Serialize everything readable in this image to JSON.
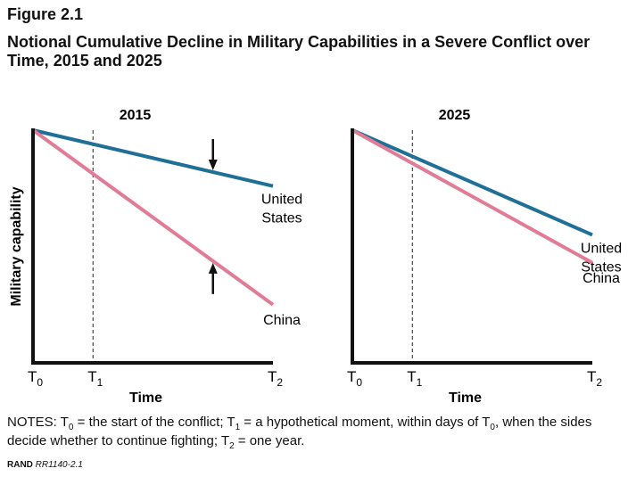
{
  "figure_label": "Figure 2.1",
  "title": "Notional Cumulative Decline in Military Capabilities in a Severe Conflict over Time, 2015 and 2025",
  "notes": {
    "prefix": "NOTES: ",
    "t0": "T",
    "t0_sub": "0",
    "part1": " = the start of the conflict; ",
    "t1": "T",
    "t1_sub": "1",
    "part2": " = a hypothetical moment, within days of ",
    "t0b": "T",
    "t0b_sub": "0",
    "part3": ", when the sides decide whether to continue fighting; ",
    "t2": "T",
    "t2_sub": "2",
    "part4": " = one year."
  },
  "source": {
    "org": "RAND",
    "id": "RR1140-2.1"
  },
  "colors": {
    "us": "#1f6f97",
    "china": "#e07c95",
    "axis": "#111111"
  },
  "chart_data": [
    {
      "type": "line",
      "title": "2015",
      "xlabel": "Time",
      "ylabel": "Military capability",
      "x_ticks": [
        {
          "label": "T",
          "sub": "0",
          "x": 0
        },
        {
          "label": "T",
          "sub": "1",
          "x": 0.25
        },
        {
          "label": "T",
          "sub": "2",
          "x": 1
        }
      ],
      "xlim": [
        0,
        1
      ],
      "ylim": [
        0,
        100
      ],
      "marker_line_x": 0.25,
      "series": [
        {
          "name": "United States",
          "label_lines": [
            "United",
            "States"
          ],
          "x": [
            0,
            1
          ],
          "y": [
            100,
            76
          ]
        },
        {
          "name": "China",
          "label_lines": [
            "China"
          ],
          "x": [
            0,
            1
          ],
          "y": [
            100,
            25
          ]
        }
      ],
      "annotations": [
        {
          "type": "arrow-down",
          "x": 0.75,
          "target": "United States"
        },
        {
          "type": "arrow-up",
          "x": 0.75,
          "target": "China"
        }
      ]
    },
    {
      "type": "line",
      "title": "2025",
      "xlabel": "Time",
      "ylabel": "",
      "x_ticks": [
        {
          "label": "T",
          "sub": "0",
          "x": 0
        },
        {
          "label": "T",
          "sub": "1",
          "x": 0.25
        },
        {
          "label": "T",
          "sub": "2",
          "x": 1
        }
      ],
      "xlim": [
        0,
        1
      ],
      "ylim": [
        0,
        100
      ],
      "marker_line_x": 0.25,
      "series": [
        {
          "name": "United States",
          "label_lines": [
            "United",
            "States"
          ],
          "x": [
            0,
            1
          ],
          "y": [
            100,
            55
          ]
        },
        {
          "name": "China",
          "label_lines": [
            "China"
          ],
          "x": [
            0,
            1
          ],
          "y": [
            100,
            43
          ]
        }
      ],
      "annotations": []
    }
  ]
}
